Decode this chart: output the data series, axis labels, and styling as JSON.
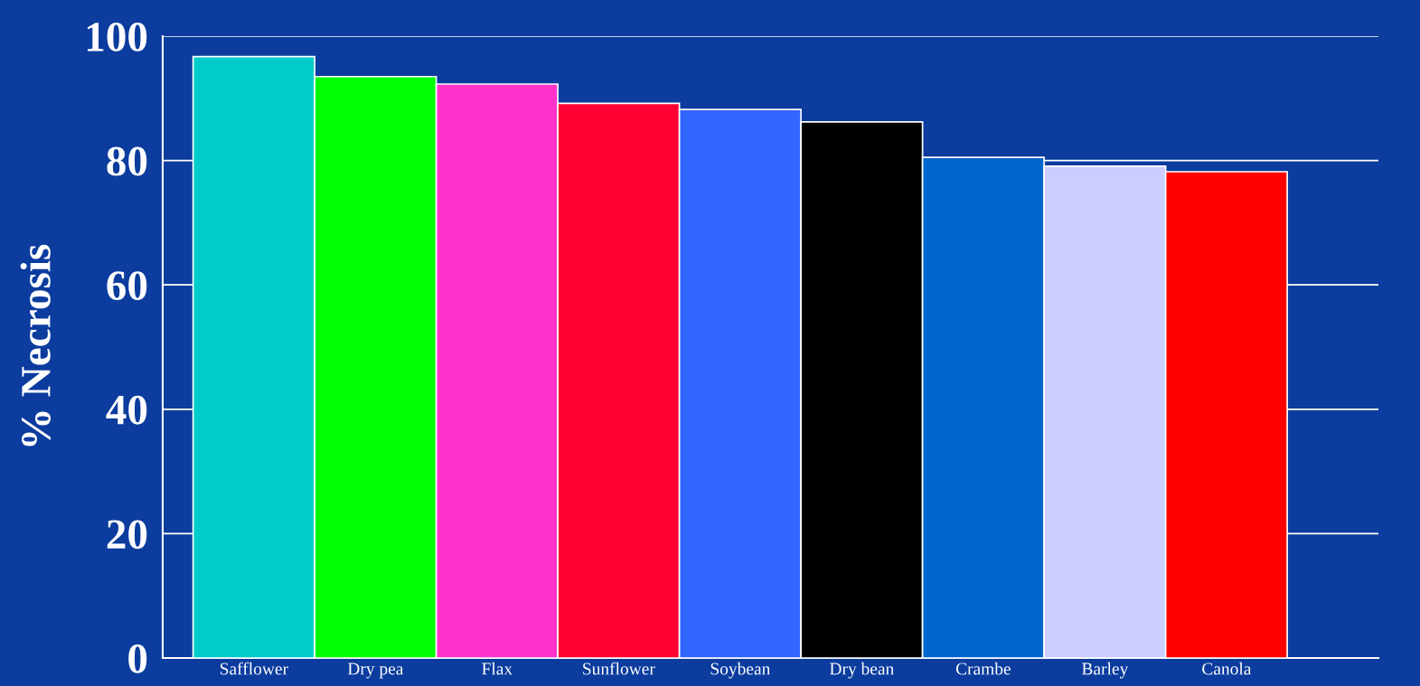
{
  "chart_data": {
    "type": "bar",
    "ylabel": "% Necrosis",
    "categories": [
      "Safflower",
      "Dry pea",
      "Flax",
      "Sunflower",
      "Soybean",
      "Dry bean",
      "Crambe",
      "Barley",
      "Canola"
    ],
    "values": [
      96.7,
      93.5,
      92.3,
      89.2,
      88.2,
      86.2,
      80.5,
      79.1,
      78.2
    ],
    "colors": [
      "#00cccc",
      "#00ff00",
      "#ff33cc",
      "#ff0033",
      "#3366ff",
      "#000000",
      "#0066cc",
      "#ccccff",
      "#ff0000"
    ],
    "ylim": [
      0,
      100
    ],
    "yticks": [
      0,
      20,
      40,
      60,
      80,
      100
    ],
    "grid": "y"
  }
}
